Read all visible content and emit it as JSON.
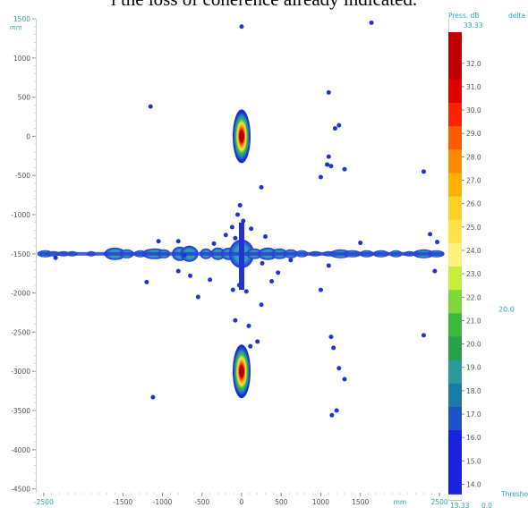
{
  "caption": "l the loss of coherence already indicated.",
  "chart_data": {
    "type": "heatmap",
    "title": "",
    "xlabel": "mm",
    "ylabel": "mm",
    "x_unit": "mm",
    "y_unit": "mm",
    "xlim": [
      -2600,
      2600
    ],
    "ylim": [
      -4550,
      1500
    ],
    "x_ticks": [
      -2500,
      -1500,
      -1000,
      -500,
      0,
      500,
      1000,
      1500,
      2500
    ],
    "y_ticks": [
      1500,
      1000,
      500,
      0,
      -500,
      -1000,
      -1500,
      -2000,
      -2500,
      -3000,
      -3500,
      -4000,
      -4500
    ],
    "colorbar": {
      "label": "Press. dB",
      "side_label": "delta",
      "max_label": "33.33",
      "min_label": "13.33",
      "ticks": [
        "32.0",
        "31.0",
        "30.0",
        "29.0",
        "28.0",
        "27.0",
        "26.0",
        "25.0",
        "24.0",
        "23.0",
        "22.0",
        "21.0",
        "20.0",
        "19.0",
        "18.0",
        "17.0",
        "16.0",
        "15.0",
        "14.0"
      ],
      "tick_values": [
        32,
        31,
        30,
        29,
        28,
        27,
        26,
        25,
        24,
        23,
        22,
        21,
        20,
        19,
        18,
        17,
        16,
        15,
        14
      ],
      "range": [
        13.33,
        33.33
      ],
      "delta_value": "20.0",
      "threshold_label": "Thresho",
      "threshold_value": "0.0"
    },
    "sources": [
      {
        "x": 0,
        "y": 0,
        "peak_db": 33.33
      },
      {
        "x": 0,
        "y": -3000,
        "peak_db": 33.33
      }
    ],
    "sidelobe_row_y": -1500
  }
}
